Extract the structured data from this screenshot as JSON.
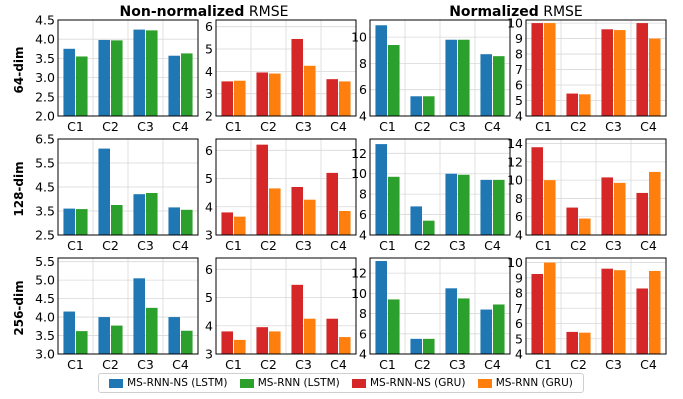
{
  "headers": [
    {
      "bold": "Non-normalized",
      "rest": " RMSE"
    },
    {
      "bold": "Normalized",
      "rest": " RMSE"
    }
  ],
  "row_labels": [
    "64-dim",
    "128-dim",
    "256-dim"
  ],
  "colors": {
    "lstm_ns": "#1f77b4",
    "lstm": "#2ca02c",
    "gru_ns": "#d62728",
    "gru": "#ff7f0e"
  },
  "legend": [
    {
      "label": "MS-RNN-NS (LSTM)",
      "color": "#1f77b4"
    },
    {
      "label": "MS-RNN (LSTM)",
      "color": "#2ca02c"
    },
    {
      "label": "MS-RNN-NS (GRU)",
      "color": "#d62728"
    },
    {
      "label": "MS-RNN (GRU)",
      "color": "#ff7f0e"
    }
  ],
  "chart_data": [
    {
      "type": "bar",
      "row": "64-dim",
      "metric": "Non-normalized RMSE",
      "model": "LSTM",
      "categories": [
        "C1",
        "C2",
        "C3",
        "C4"
      ],
      "ylim": [
        2.0,
        4.5
      ],
      "yticks": [
        "2.0",
        "2.5",
        "3.0",
        "3.5",
        "4.0",
        "4.5"
      ],
      "series": [
        {
          "name": "MS-RNN-NS (LSTM)",
          "values": [
            3.75,
            3.98,
            4.25,
            3.57
          ]
        },
        {
          "name": "MS-RNN (LSTM)",
          "values": [
            3.55,
            3.97,
            4.23,
            3.63
          ]
        }
      ]
    },
    {
      "type": "bar",
      "row": "64-dim",
      "metric": "Non-normalized RMSE",
      "model": "GRU",
      "categories": [
        "C1",
        "C2",
        "C3",
        "C4"
      ],
      "ylim": [
        2,
        6.3
      ],
      "yticks": [
        "2",
        "3",
        "4",
        "5",
        "6"
      ],
      "series": [
        {
          "name": "MS-RNN-NS (GRU)",
          "values": [
            3.55,
            3.95,
            5.45,
            3.65
          ]
        },
        {
          "name": "MS-RNN (GRU)",
          "values": [
            3.58,
            3.9,
            4.25,
            3.55
          ]
        }
      ]
    },
    {
      "type": "bar",
      "row": "64-dim",
      "metric": "Normalized RMSE",
      "model": "LSTM",
      "categories": [
        "C1",
        "C2",
        "C3",
        "C4"
      ],
      "ylim": [
        4,
        11.3
      ],
      "yticks": [
        "4",
        "6",
        "8",
        "10"
      ],
      "series": [
        {
          "name": "MS-RNN-NS (LSTM)",
          "values": [
            10.9,
            5.5,
            9.8,
            8.7
          ]
        },
        {
          "name": "MS-RNN (LSTM)",
          "values": [
            9.4,
            5.5,
            9.8,
            8.55
          ]
        }
      ]
    },
    {
      "type": "bar",
      "row": "64-dim",
      "metric": "Normalized RMSE",
      "model": "GRU",
      "categories": [
        "C1",
        "C2",
        "C3",
        "C4"
      ],
      "ylim": [
        4,
        10.2
      ],
      "yticks": [
        "4",
        "5",
        "6",
        "7",
        "8",
        "9",
        "10"
      ],
      "series": [
        {
          "name": "MS-RNN-NS (GRU)",
          "values": [
            10.0,
            5.45,
            9.6,
            10.0
          ]
        },
        {
          "name": "MS-RNN (GRU)",
          "values": [
            10.0,
            5.4,
            9.55,
            9.0
          ]
        }
      ]
    },
    {
      "type": "bar",
      "row": "128-dim",
      "metric": "Non-normalized RMSE",
      "model": "LSTM",
      "categories": [
        "C1",
        "C2",
        "C3",
        "C4"
      ],
      "ylim": [
        2.5,
        6.5
      ],
      "yticks": [
        "2.5",
        "3.5",
        "4.5",
        "5.5",
        "6.5"
      ],
      "series": [
        {
          "name": "MS-RNN-NS (LSTM)",
          "values": [
            3.6,
            6.1,
            4.2,
            3.65
          ]
        },
        {
          "name": "MS-RNN (LSTM)",
          "values": [
            3.58,
            3.75,
            4.25,
            3.55
          ]
        }
      ]
    },
    {
      "type": "bar",
      "row": "128-dim",
      "metric": "Non-normalized RMSE",
      "model": "GRU",
      "categories": [
        "C1",
        "C2",
        "C3",
        "C4"
      ],
      "ylim": [
        3,
        6.4
      ],
      "yticks": [
        "3",
        "4",
        "5",
        "6"
      ],
      "series": [
        {
          "name": "MS-RNN-NS (GRU)",
          "values": [
            3.8,
            6.2,
            4.7,
            5.2
          ]
        },
        {
          "name": "MS-RNN (GRU)",
          "values": [
            3.65,
            4.65,
            4.25,
            3.85
          ]
        }
      ]
    },
    {
      "type": "bar",
      "row": "128-dim",
      "metric": "Normalized RMSE",
      "model": "LSTM",
      "categories": [
        "C1",
        "C2",
        "C3",
        "C4"
      ],
      "ylim": [
        4,
        13.4
      ],
      "yticks": [
        "4",
        "6",
        "8",
        "10",
        "12"
      ],
      "series": [
        {
          "name": "MS-RNN-NS (LSTM)",
          "values": [
            12.9,
            6.8,
            10.0,
            9.4
          ]
        },
        {
          "name": "MS-RNN (LSTM)",
          "values": [
            9.7,
            5.4,
            9.9,
            9.4
          ]
        }
      ]
    },
    {
      "type": "bar",
      "row": "128-dim",
      "metric": "Normalized RMSE",
      "model": "GRU",
      "categories": [
        "C1",
        "C2",
        "C3",
        "C4"
      ],
      "ylim": [
        4,
        14.5
      ],
      "yticks": [
        "4",
        "6",
        "8",
        "10",
        "12",
        "14"
      ],
      "series": [
        {
          "name": "MS-RNN-NS (GRU)",
          "values": [
            13.6,
            7.0,
            10.3,
            8.6
          ]
        },
        {
          "name": "MS-RNN (GRU)",
          "values": [
            10.0,
            5.8,
            9.7,
            10.9
          ]
        }
      ]
    },
    {
      "type": "bar",
      "row": "256-dim",
      "metric": "Non-normalized RMSE",
      "model": "LSTM",
      "categories": [
        "C1",
        "C2",
        "C3",
        "C4"
      ],
      "ylim": [
        3.0,
        5.6
      ],
      "yticks": [
        "3.0",
        "3.5",
        "4.0",
        "4.5",
        "5.0",
        "5.5"
      ],
      "series": [
        {
          "name": "MS-RNN-NS (LSTM)",
          "values": [
            4.15,
            4.0,
            5.05,
            4.0
          ]
        },
        {
          "name": "MS-RNN (LSTM)",
          "values": [
            3.62,
            3.77,
            4.25,
            3.63
          ]
        }
      ]
    },
    {
      "type": "bar",
      "row": "256-dim",
      "metric": "Non-normalized RMSE",
      "model": "GRU",
      "categories": [
        "C1",
        "C2",
        "C3",
        "C4"
      ],
      "ylim": [
        3,
        6.4
      ],
      "yticks": [
        "3",
        "4",
        "5",
        "6"
      ],
      "series": [
        {
          "name": "MS-RNN-NS (GRU)",
          "values": [
            3.8,
            3.95,
            5.45,
            4.25
          ]
        },
        {
          "name": "MS-RNN (GRU)",
          "values": [
            3.5,
            3.8,
            4.25,
            3.6
          ]
        }
      ]
    },
    {
      "type": "bar",
      "row": "256-dim",
      "metric": "Normalized RMSE",
      "model": "LSTM",
      "categories": [
        "C1",
        "C2",
        "C3",
        "C4"
      ],
      "ylim": [
        4,
        13.5
      ],
      "yticks": [
        "4",
        "6",
        "8",
        "10",
        "12"
      ],
      "series": [
        {
          "name": "MS-RNN-NS (LSTM)",
          "values": [
            13.2,
            5.5,
            10.5,
            8.4
          ]
        },
        {
          "name": "MS-RNN (LSTM)",
          "values": [
            9.4,
            5.5,
            9.5,
            8.9
          ]
        }
      ]
    },
    {
      "type": "bar",
      "row": "256-dim",
      "metric": "Normalized RMSE",
      "model": "GRU",
      "categories": [
        "C1",
        "C2",
        "C3",
        "C4"
      ],
      "ylim": [
        4,
        10.3
      ],
      "yticks": [
        "4",
        "5",
        "6",
        "7",
        "8",
        "9",
        "10"
      ],
      "series": [
        {
          "name": "MS-RNN-NS (GRU)",
          "values": [
            9.25,
            5.45,
            9.6,
            8.3
          ]
        },
        {
          "name": "MS-RNN (GRU)",
          "values": [
            10.0,
            5.4,
            9.5,
            9.45
          ]
        }
      ]
    }
  ]
}
